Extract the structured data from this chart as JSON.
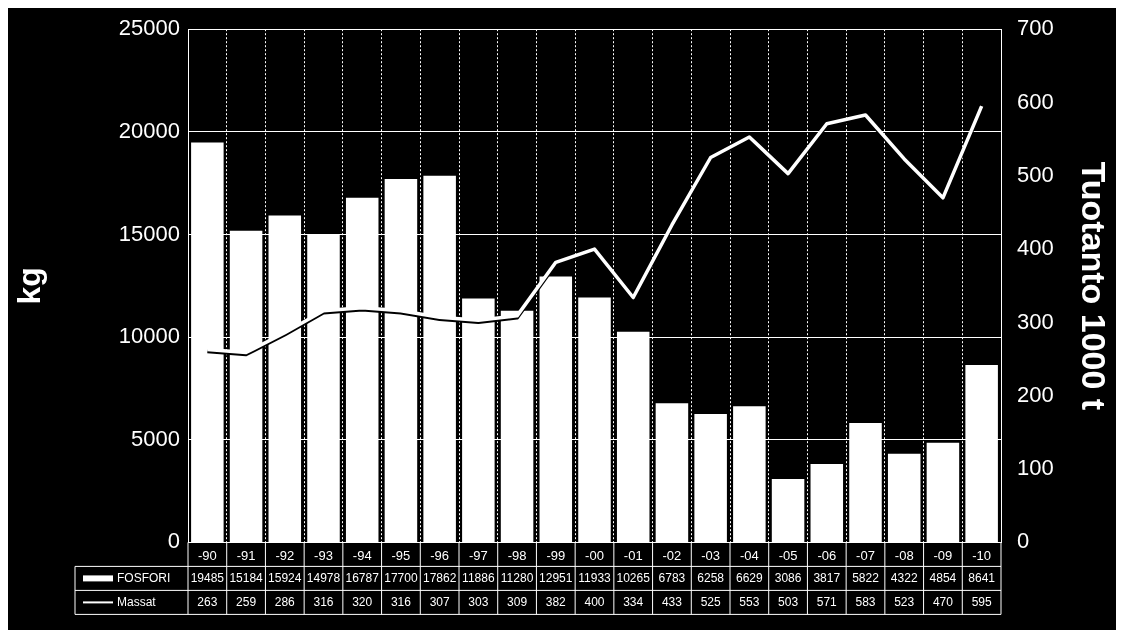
{
  "chart_data": {
    "type": "bar",
    "ylabel": "kg",
    "y2label": "Tuotanto 1000 t",
    "categories": [
      "-90",
      "-91",
      "-92",
      "-93",
      "-94",
      "-95",
      "-96",
      "-97",
      "-98",
      "-99",
      "-00",
      "-01",
      "-02",
      "-03",
      "-04",
      "-05",
      "-06",
      "-07",
      "-08",
      "-09",
      "-10"
    ],
    "series": [
      {
        "name": "FOSFORI",
        "color": "#ffffff",
        "values": [
          19485,
          15184,
          15924,
          14978,
          16787,
          17700,
          17862,
          11886,
          11280,
          12951,
          11933,
          10265,
          6783,
          6258,
          6629,
          3086,
          3817,
          5822,
          4322,
          4854,
          8641
        ]
      },
      {
        "name": "Massat",
        "type": "line",
        "axis": "y2",
        "color": "#ffffff",
        "marker": "none",
        "values": [
          263,
          259,
          286,
          316,
          320,
          316,
          307,
          303,
          309,
          382,
          400,
          334,
          433,
          525,
          553,
          503,
          571,
          583,
          523,
          470,
          595
        ]
      }
    ],
    "ylim": [
      0,
      25000
    ],
    "yticks": [
      0,
      5000,
      10000,
      15000,
      20000,
      25000
    ],
    "y2lim": [
      0,
      700
    ],
    "y2ticks": [
      0,
      100,
      200,
      300,
      400,
      500,
      600,
      700
    ],
    "grid": true,
    "legend": "bottom",
    "data_labels": true
  }
}
